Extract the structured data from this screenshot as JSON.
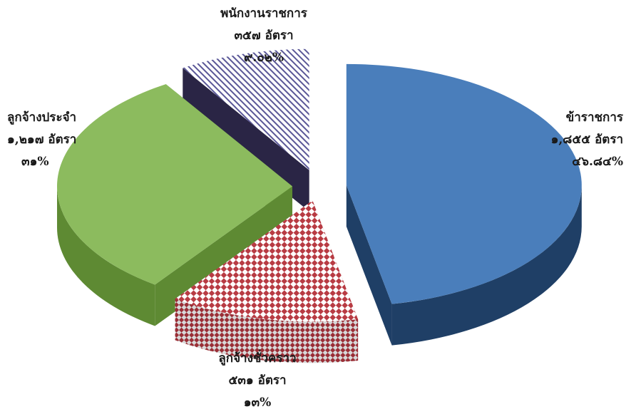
{
  "chart_data": {
    "type": "pie",
    "title": "",
    "slices": [
      {
        "label": "ข้าราชการ",
        "count": "๑,๘๕๕ อัตรา",
        "percent_text": "๔๖.๘๔%",
        "value": 46.84,
        "color": "#4a7ebb",
        "side_color": "#1f3f66",
        "pattern": "solid"
      },
      {
        "label": "ลูกจ้างชั่วคราว",
        "count": "๕๓๑ อัตรา",
        "percent_text": "๑๓%",
        "value": 13,
        "color": "#b83b43",
        "side_color": "#b83b43",
        "pattern": "checker"
      },
      {
        "label": "ลูกจ้างประจำ",
        "count": "๑,๒๑๗ อัตรา",
        "percent_text": "๓๑%",
        "value": 31,
        "color": "#8cbb5e",
        "side_color": "#5e8a33",
        "pattern": "solid"
      },
      {
        "label": "พนักงานราชการ",
        "count": "๓๕๗ อัตรา",
        "percent_text": "๙.๐๒%",
        "value": 9.02,
        "color": "#5b5898",
        "side_color": "#2a2545",
        "pattern": "diagonal"
      }
    ]
  }
}
